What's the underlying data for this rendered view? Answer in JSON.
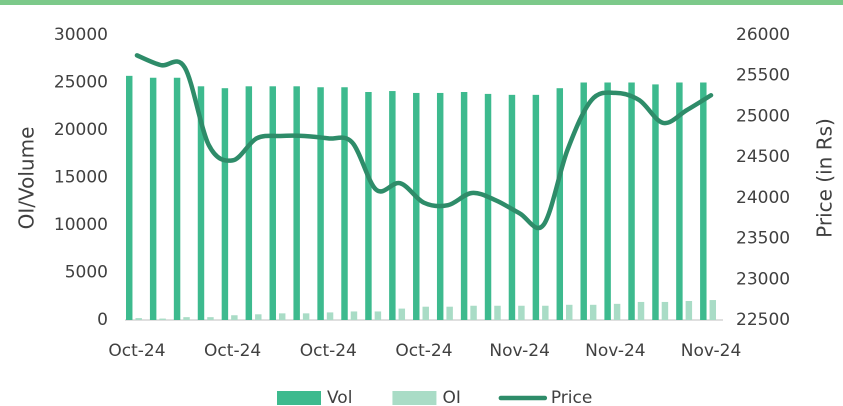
{
  "chart_data": {
    "type": "bar-line",
    "categories": [
      "Oct-24",
      null,
      null,
      null,
      "Oct-24",
      null,
      null,
      null,
      "Oct-24",
      null,
      null,
      null,
      "Oct-24",
      null,
      null,
      null,
      "Nov-24",
      null,
      null,
      null,
      "Nov-24",
      null,
      null,
      null,
      "Nov-24"
    ],
    "series": [
      {
        "name": "Vol",
        "type": "bar",
        "color": "#3dba8e",
        "values": [
          25700,
          25500,
          25500,
          24600,
          24400,
          24600,
          24600,
          24600,
          24500,
          24500,
          24000,
          24100,
          23900,
          23900,
          24000,
          23800,
          23700,
          23700,
          24400,
          25000,
          25000,
          25000,
          24800,
          25000,
          25000
        ]
      },
      {
        "name": "OI",
        "type": "bar",
        "color": "#a9dcc6",
        "values": [
          200,
          150,
          300,
          300,
          500,
          600,
          700,
          700,
          800,
          900,
          900,
          1200,
          1400,
          1400,
          1500,
          1500,
          1500,
          1500,
          1600,
          1600,
          1700,
          1900,
          1900,
          2000,
          2100
        ]
      },
      {
        "name": "Price",
        "type": "line",
        "axis": "y2",
        "color": "#2e8c69",
        "values": [
          25750,
          25630,
          25600,
          24650,
          24460,
          24730,
          24760,
          24760,
          24730,
          24680,
          24100,
          24180,
          23940,
          23910,
          24060,
          23970,
          23810,
          23670,
          24590,
          25200,
          25290,
          25200,
          24920,
          25080,
          25260
        ]
      }
    ],
    "ylabel": "OI/Volume",
    "y2label": "Price (in Rs)",
    "ylim": [
      0,
      30000
    ],
    "yticks": [
      0,
      5000,
      10000,
      15000,
      20000,
      25000,
      30000
    ],
    "y2lim": [
      22500,
      26000
    ],
    "y2ticks": [
      22500,
      23000,
      23500,
      24000,
      24500,
      25000,
      25500,
      26000
    ],
    "legend": "bottom"
  }
}
